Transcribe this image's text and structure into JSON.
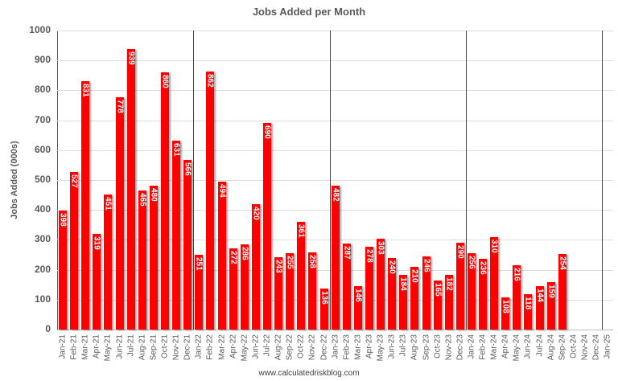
{
  "chart_data": {
    "type": "bar",
    "title": "Jobs Added per Month",
    "xlabel": "",
    "ylabel": "Jobs Added (000s)",
    "ylim": [
      0,
      1000
    ],
    "yticks": [
      0,
      100,
      200,
      300,
      400,
      500,
      600,
      700,
      800,
      900,
      1000
    ],
    "grid": true,
    "legend": null,
    "bar_color": "#ff0000",
    "year_dividers": [
      "Jan-22",
      "Jan-23",
      "Jan-24",
      "Jan-25"
    ],
    "categories": [
      "Jan-21",
      "Feb-21",
      "Mar-21",
      "Apr-21",
      "May-21",
      "Jun-21",
      "Jul-21",
      "Aug-21",
      "Sep-21",
      "Oct-21",
      "Nov-21",
      "Dec-21",
      "Jan-22",
      "Feb-22",
      "Mar-22",
      "Apr-22",
      "May-22",
      "Jun-22",
      "Jul-22",
      "Aug-22",
      "Sep-22",
      "Oct-22",
      "Nov-22",
      "Dec-22",
      "Jan-23",
      "Feb-23",
      "Mar-23",
      "Apr-23",
      "May-23",
      "Jun-23",
      "Jul-23",
      "Aug-23",
      "Sep-23",
      "Oct-23",
      "Nov-23",
      "Dec-23",
      "Jan-24",
      "Feb-24",
      "Mar-24",
      "Apr-24",
      "May-24",
      "Jun-24",
      "Jul-24",
      "Aug-24",
      "Sep-24",
      "Oct-24",
      "Nov-24",
      "Dec-24",
      "Jan-25"
    ],
    "values": [
      398,
      527,
      831,
      319,
      451,
      778,
      939,
      465,
      480,
      860,
      631,
      566,
      251,
      862,
      494,
      272,
      286,
      420,
      690,
      243,
      255,
      361,
      258,
      136,
      482,
      287,
      146,
      278,
      303,
      240,
      184,
      210,
      246,
      165,
      182,
      290,
      256,
      236,
      310,
      108,
      216,
      118,
      144,
      159,
      254,
      null,
      null,
      null,
      null
    ],
    "source": "www.calculatedriskblog.com"
  }
}
